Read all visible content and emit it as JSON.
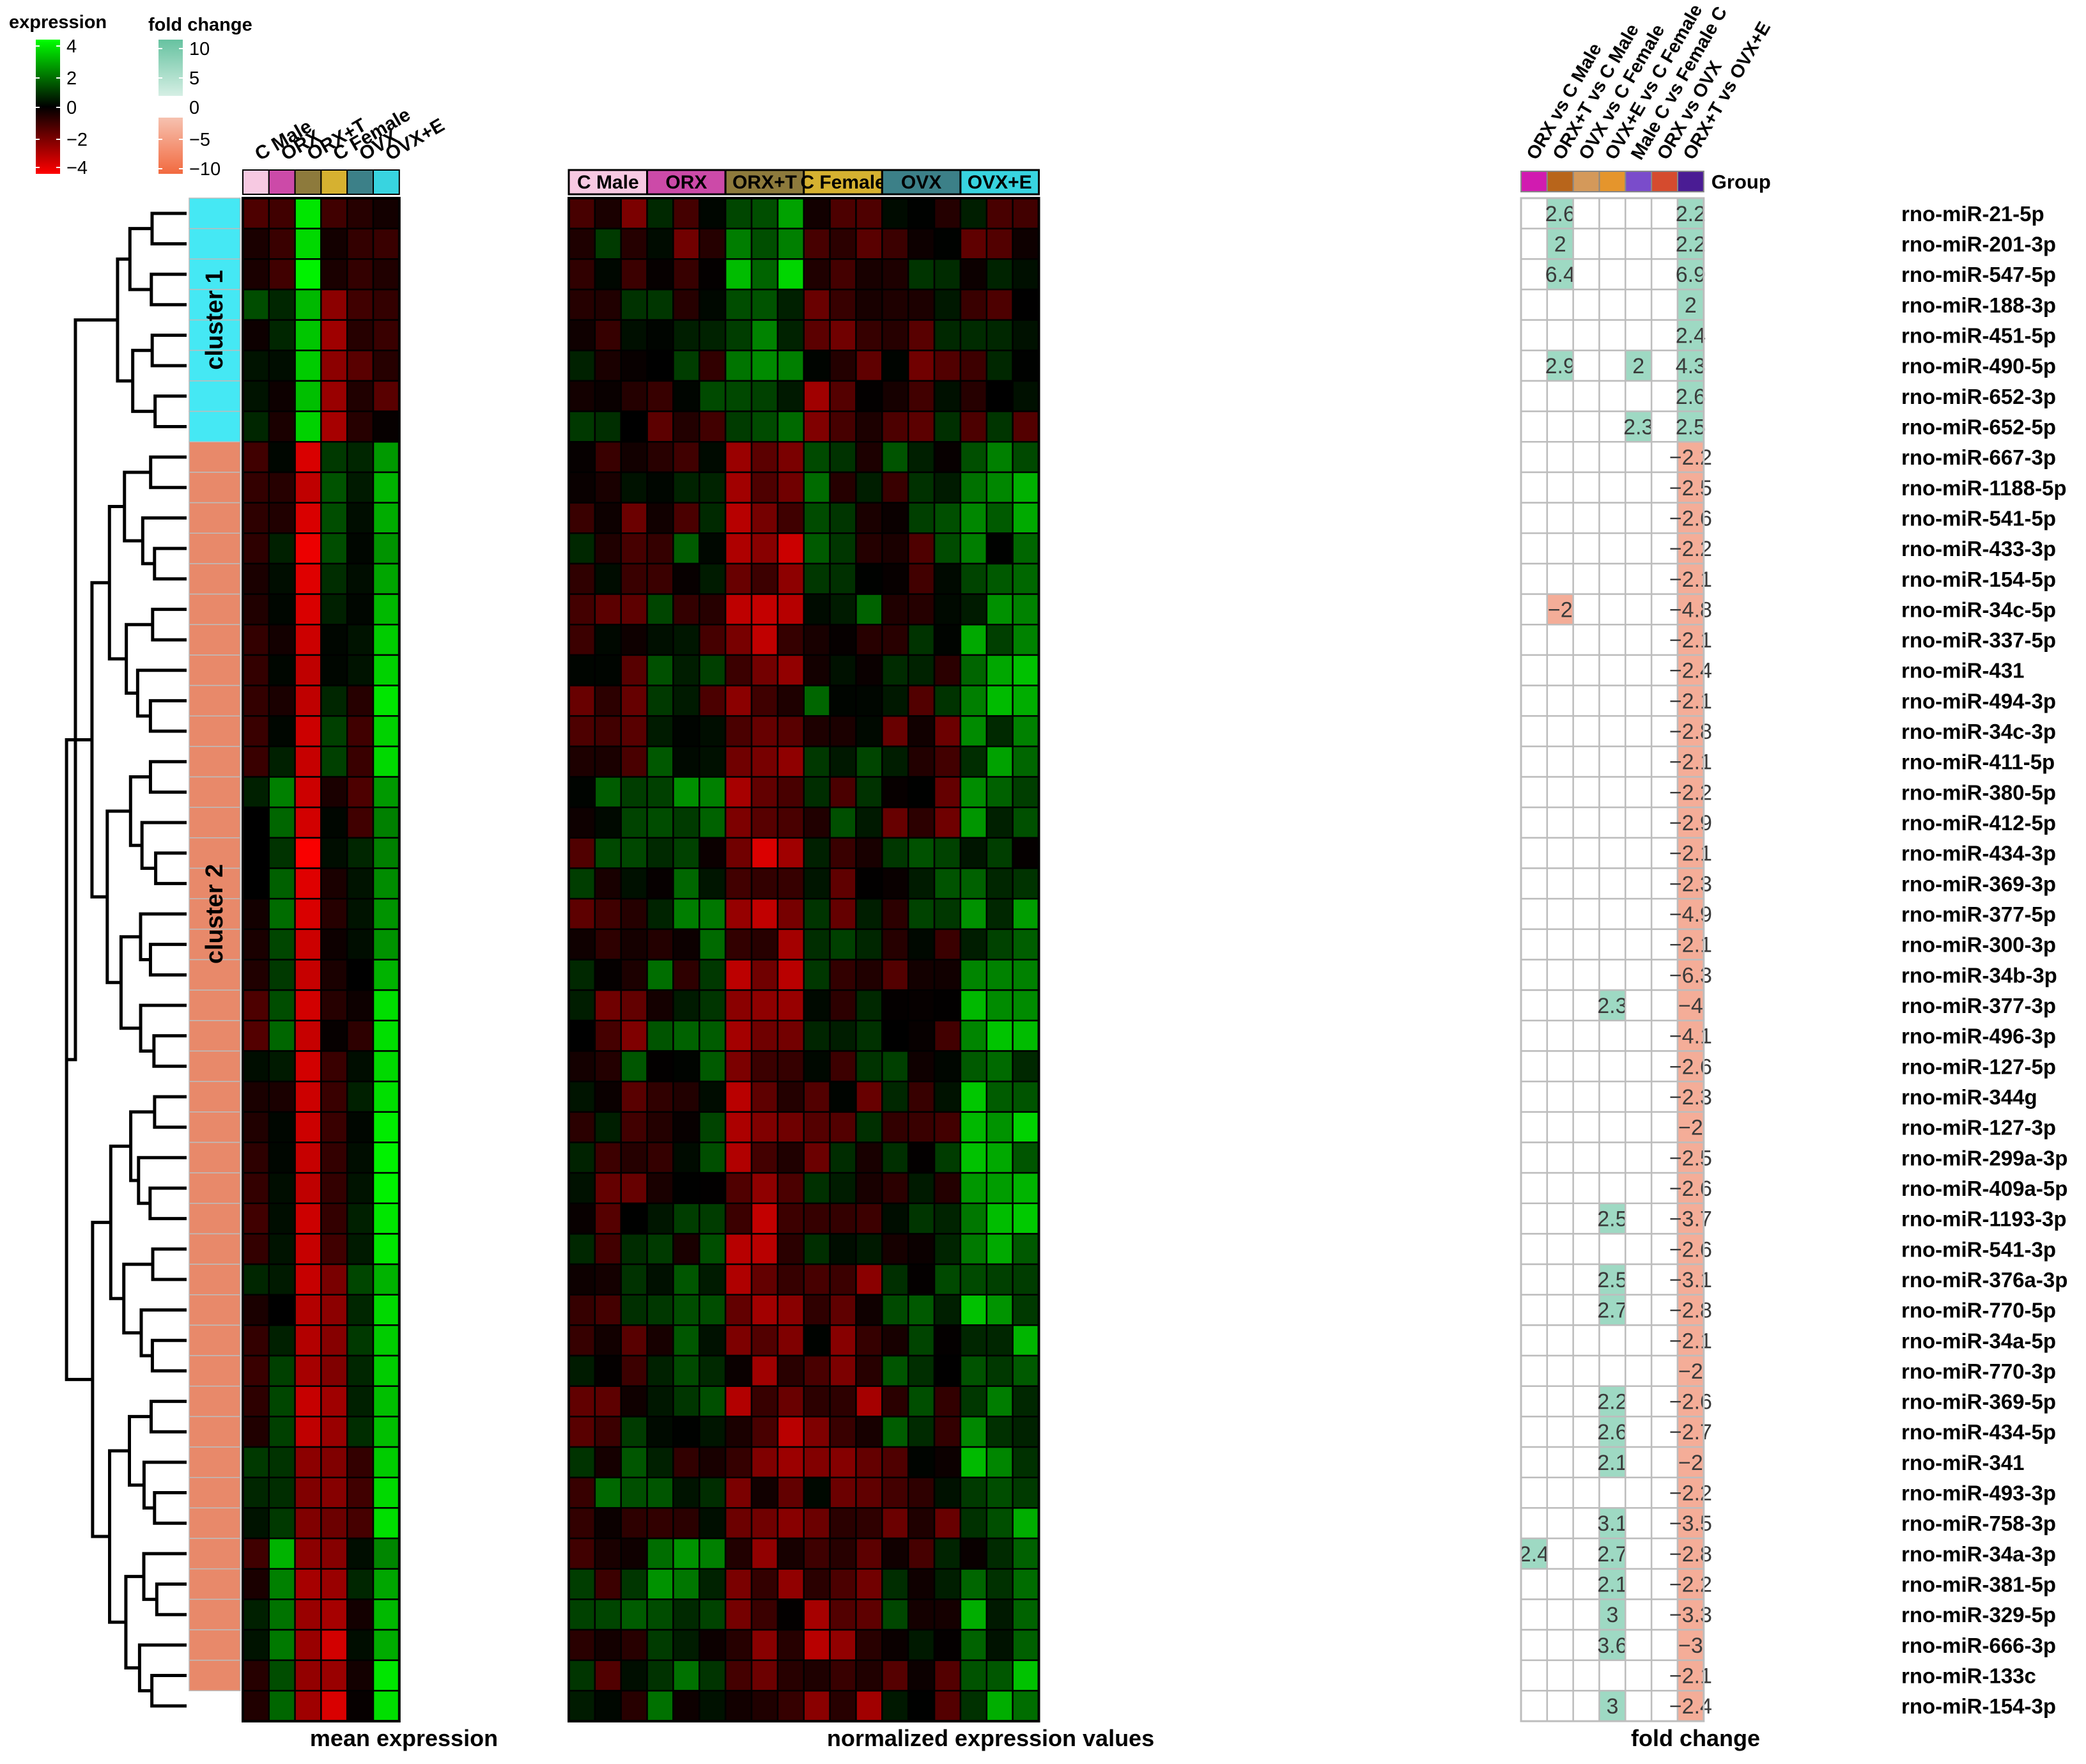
{
  "chart_data": {
    "type": "heatmap",
    "legends": {
      "expression": {
        "title": "expression",
        "ticks": [
          "4",
          "2",
          "0",
          "−2",
          "−4"
        ]
      },
      "fold_change": {
        "title": "fold change",
        "ticks": [
          "10",
          "5",
          "0",
          "−5",
          "−10"
        ]
      }
    },
    "panel_titles": {
      "mean": "mean expression",
      "normalized": "normalized expression values",
      "fold": "fold change"
    },
    "group_names": [
      "C Male",
      "ORX",
      "ORX+T",
      "C Female",
      "OVX",
      "OVX+E"
    ],
    "group_colors": [
      "#f7c9e2",
      "#cc4aa8",
      "#8d7a3c",
      "#d6b130",
      "#3c8088",
      "#38d4e0"
    ],
    "comparison_names": [
      "ORX vs C Male",
      "ORX+T vs C Male",
      "OVX vs C Female",
      "OVX+E vs C Female",
      "Male C vs Female C",
      "ORX vs OVX",
      "ORX+T vs OVX+E"
    ],
    "comparison_colors": [
      "#d11bb0",
      "#b8651b",
      "#d4995a",
      "#e5952c",
      "#7a4ccb",
      "#d54b2e",
      "#4a1c94"
    ],
    "group_column_label": "Group",
    "cluster_labels": [
      "cluster 1",
      "cluster 2"
    ],
    "cluster_colors": [
      "#45e8f4",
      "#e8896a"
    ],
    "cluster_sizes": [
      8,
      41
    ],
    "color_scale": {
      "expression_range": [
        -4,
        4
      ],
      "low": "#ff0000",
      "mid": "#000000",
      "high": "#00ff00",
      "fold_pos": "#9ed9c3",
      "fold_neg": "#f4ad98"
    },
    "rows": [
      {
        "name": "rno-miR-21-5p",
        "mean": [
          -1.2,
          -1.0,
          3.6,
          -1.0,
          -0.6,
          -0.3
        ],
        "fc": [
          "",
          "2.6",
          "",
          "",
          "",
          "",
          "2.2"
        ]
      },
      {
        "name": "rno-miR-201-3p",
        "mean": [
          -0.4,
          -0.9,
          3.4,
          -0.3,
          -0.8,
          -0.9
        ],
        "fc": [
          "",
          "2",
          "",
          "",
          "",
          "",
          "2.2"
        ]
      },
      {
        "name": "rno-miR-547-5p",
        "mean": [
          -0.4,
          -1.0,
          3.8,
          -0.4,
          -0.8,
          -0.5
        ],
        "fc": [
          "",
          "6.4",
          "",
          "",
          "",
          "",
          "6.9"
        ]
      },
      {
        "name": "rno-miR-188-3p",
        "mean": [
          1.2,
          0.6,
          2.9,
          -2.2,
          -1.0,
          -0.8
        ],
        "fc": [
          "",
          "",
          "",
          "",
          "",
          "",
          "2"
        ]
      },
      {
        "name": "rno-miR-451-5p",
        "mean": [
          -0.2,
          0.6,
          3.1,
          -2.5,
          -0.6,
          -0.9
        ],
        "fc": [
          "",
          "",
          "",
          "",
          "",
          "",
          "2.4"
        ]
      },
      {
        "name": "rno-miR-490-5p",
        "mean": [
          0.3,
          0.2,
          3.2,
          -2.2,
          -1.4,
          -0.6
        ],
        "fc": [
          "",
          "2.9",
          "",
          "",
          "2",
          "",
          "4.3"
        ]
      },
      {
        "name": "rno-miR-652-3p",
        "mean": [
          0.3,
          -0.2,
          3.0,
          -2.4,
          -0.5,
          -1.4
        ],
        "fc": [
          "",
          "",
          "",
          "",
          "",
          "",
          "2.6"
        ]
      },
      {
        "name": "rno-miR-652-5p",
        "mean": [
          0.6,
          -0.4,
          3.3,
          -2.6,
          -0.6,
          -0.1
        ],
        "fc": [
          "",
          "",
          "",
          "",
          "2.3",
          "",
          "2.5"
        ]
      },
      {
        "name": "rno-miR-667-3p",
        "mean": [
          -1.0,
          0.1,
          -3.4,
          0.9,
          0.6,
          2.4
        ],
        "fc": [
          "",
          "",
          "",
          "",
          "",
          "",
          "−2.2"
        ]
      },
      {
        "name": "rno-miR-1188-5p",
        "mean": [
          -0.8,
          -0.6,
          -3.0,
          1.3,
          0.4,
          2.8
        ],
        "fc": [
          "",
          "",
          "",
          "",
          "",
          "",
          "−2.5"
        ]
      },
      {
        "name": "rno-miR-541-5p",
        "mean": [
          -0.7,
          -0.5,
          -3.4,
          1.2,
          0.2,
          2.7
        ],
        "fc": [
          "",
          "",
          "",
          "",
          "",
          "",
          "−2.6"
        ]
      },
      {
        "name": "rno-miR-433-3p",
        "mean": [
          -0.7,
          0.5,
          -3.7,
          1.2,
          0.1,
          2.3
        ],
        "fc": [
          "",
          "",
          "",
          "",
          "",
          "",
          "−2.2"
        ]
      },
      {
        "name": "rno-miR-154-5p",
        "mean": [
          -0.4,
          0.2,
          -3.5,
          0.7,
          0.2,
          2.6
        ],
        "fc": [
          "",
          "",
          "",
          "",
          "",
          "",
          "−2.1"
        ]
      },
      {
        "name": "rno-miR-34c-5p",
        "mean": [
          -0.5,
          0.1,
          -3.4,
          0.5,
          0.1,
          2.9
        ],
        "fc": [
          "",
          "−2",
          "",
          "",
          "",
          "",
          "−4.8"
        ]
      },
      {
        "name": "rno-miR-337-5p",
        "mean": [
          -0.8,
          -0.3,
          -3.2,
          0.1,
          0.3,
          3.2
        ],
        "fc": [
          "",
          "",
          "",
          "",
          "",
          "",
          "−2.1"
        ]
      },
      {
        "name": "rno-miR-431",
        "mean": [
          -0.8,
          0.1,
          -3.0,
          0.1,
          0.3,
          3.3
        ],
        "fc": [
          "",
          "",
          "",
          "",
          "",
          "",
          "−2.4"
        ]
      },
      {
        "name": "rno-miR-494-3p",
        "mean": [
          -0.8,
          -0.4,
          -3.0,
          0.6,
          -0.6,
          3.6
        ],
        "fc": [
          "",
          "",
          "",
          "",
          "",
          "",
          "−2.1"
        ]
      },
      {
        "name": "rno-miR-34c-3p",
        "mean": [
          -0.9,
          0.1,
          -3.2,
          1.0,
          -1.0,
          3.3
        ],
        "fc": [
          "",
          "",
          "",
          "",
          "",
          "",
          "−2.8"
        ]
      },
      {
        "name": "rno-miR-411-5p",
        "mean": [
          -0.9,
          0.5,
          -3.1,
          1.0,
          -0.9,
          3.4
        ],
        "fc": [
          "",
          "",
          "",
          "",
          "",
          "",
          "−2.1"
        ]
      },
      {
        "name": "rno-miR-380-5p",
        "mean": [
          0.5,
          2.0,
          -3.2,
          -0.4,
          -1.2,
          2.4
        ],
        "fc": [
          "",
          "",
          "",
          "",
          "",
          "",
          "−2.2"
        ]
      },
      {
        "name": "rno-miR-412-5p",
        "mean": [
          0.0,
          1.6,
          -3.3,
          0.1,
          -1.0,
          2.0
        ],
        "fc": [
          "",
          "",
          "",
          "",
          "",
          "",
          "−2.9"
        ]
      },
      {
        "name": "rno-miR-434-3p",
        "mean": [
          0.0,
          0.8,
          -3.9,
          0.2,
          0.6,
          2.0
        ],
        "fc": [
          "",
          "",
          "",
          "",
          "",
          "",
          "−2.1"
        ]
      },
      {
        "name": "rno-miR-369-3p",
        "mean": [
          0.0,
          1.5,
          -3.5,
          -0.4,
          0.3,
          2.2
        ],
        "fc": [
          "",
          "",
          "",
          "",
          "",
          "",
          "−2.3"
        ]
      },
      {
        "name": "rno-miR-377-5p",
        "mean": [
          -0.3,
          1.7,
          -3.4,
          -0.6,
          0.3,
          2.3
        ],
        "fc": [
          "",
          "",
          "",
          "",
          "",
          "",
          "−4.9"
        ]
      },
      {
        "name": "rno-miR-300-3p",
        "mean": [
          -0.4,
          1.1,
          -3.2,
          -0.2,
          0.2,
          2.3
        ],
        "fc": [
          "",
          "",
          "",
          "",
          "",
          "",
          "−2.1"
        ]
      },
      {
        "name": "rno-miR-34b-3p",
        "mean": [
          -0.5,
          0.9,
          -3.1,
          -0.4,
          0.0,
          2.8
        ],
        "fc": [
          "",
          "",
          "",
          "",
          "",
          "",
          "−6.3"
        ]
      },
      {
        "name": "rno-miR-377-3p",
        "mean": [
          -1.2,
          1.2,
          -3.3,
          -0.6,
          -0.2,
          3.5
        ],
        "fc": [
          "",
          "",
          "",
          "2.3",
          "",
          "",
          "−4"
        ]
      },
      {
        "name": "rno-miR-496-3p",
        "mean": [
          -1.3,
          1.6,
          -3.1,
          -0.1,
          -0.7,
          3.5
        ],
        "fc": [
          "",
          "",
          "",
          "",
          "",
          "",
          "−4.1"
        ]
      },
      {
        "name": "rno-miR-127-5p",
        "mean": [
          0.2,
          0.4,
          -3.3,
          -0.9,
          0.2,
          3.4
        ],
        "fc": [
          "",
          "",
          "",
          "",
          "",
          "",
          "−2.6"
        ]
      },
      {
        "name": "rno-miR-344g",
        "mean": [
          -0.4,
          -0.4,
          -3.2,
          -0.9,
          0.5,
          3.5
        ],
        "fc": [
          "",
          "",
          "",
          "",
          "",
          "",
          "−2.3"
        ]
      },
      {
        "name": "rno-miR-127-3p",
        "mean": [
          -0.5,
          0.1,
          -3.2,
          -0.9,
          0.1,
          3.7
        ],
        "fc": [
          "",
          "",
          "",
          "",
          "",
          "",
          "−2"
        ]
      },
      {
        "name": "rno-miR-299a-3p",
        "mean": [
          -0.7,
          0.1,
          -3.1,
          -0.8,
          0.2,
          3.8
        ],
        "fc": [
          "",
          "",
          "",
          "",
          "",
          "",
          "−2.5"
        ]
      },
      {
        "name": "rno-miR-409a-5p",
        "mean": [
          -0.8,
          0.2,
          -3.0,
          -0.8,
          0.3,
          3.8
        ],
        "fc": [
          "",
          "",
          "",
          "",
          "",
          "",
          "−2.6"
        ]
      },
      {
        "name": "rno-miR-1193-3p",
        "mean": [
          -1.0,
          0.2,
          -3.2,
          -0.8,
          0.5,
          3.6
        ],
        "fc": [
          "",
          "",
          "",
          "2.5",
          "",
          "",
          "−3.7"
        ]
      },
      {
        "name": "rno-miR-541-3p",
        "mean": [
          -0.8,
          0.3,
          -3.1,
          -1.0,
          0.4,
          3.6
        ],
        "fc": [
          "",
          "",
          "",
          "",
          "",
          "",
          "−2.6"
        ]
      },
      {
        "name": "rno-miR-376a-3p",
        "mean": [
          0.6,
          0.4,
          -3.1,
          -1.9,
          1.1,
          2.8
        ],
        "fc": [
          "",
          "",
          "",
          "2.5",
          "",
          "",
          "−3.1"
        ]
      },
      {
        "name": "rno-miR-770-5p",
        "mean": [
          -0.4,
          0.0,
          -2.8,
          -2.2,
          0.6,
          3.4
        ],
        "fc": [
          "",
          "",
          "",
          "2.7",
          "",
          "",
          "−2.8"
        ]
      },
      {
        "name": "rno-miR-34a-5p",
        "mean": [
          -0.8,
          0.5,
          -2.8,
          -2.1,
          0.9,
          3.2
        ],
        "fc": [
          "",
          "",
          "",
          "",
          "",
          "",
          "−2.1"
        ]
      },
      {
        "name": "rno-miR-770-3p",
        "mean": [
          -0.9,
          1.0,
          -2.6,
          -2.0,
          0.6,
          3.2
        ],
        "fc": [
          "",
          "",
          "",
          "",
          "",
          "",
          "−2"
        ]
      },
      {
        "name": "rno-miR-369-5p",
        "mean": [
          -0.7,
          1.1,
          -3.1,
          -2.5,
          0.5,
          3.0
        ],
        "fc": [
          "",
          "",
          "",
          "2.2",
          "",
          "",
          "−2.6"
        ]
      },
      {
        "name": "rno-miR-434-5p",
        "mean": [
          -0.5,
          1.0,
          -3.0,
          -2.4,
          0.7,
          3.0
        ],
        "fc": [
          "",
          "",
          "",
          "2.6",
          "",
          "",
          "−2.7"
        ]
      },
      {
        "name": "rno-miR-341",
        "mean": [
          0.9,
          0.8,
          -2.2,
          -2.0,
          -0.8,
          3.2
        ],
        "fc": [
          "",
          "",
          "",
          "2.1",
          "",
          "",
          "−2"
        ]
      },
      {
        "name": "rno-miR-493-3p",
        "mean": [
          0.6,
          0.7,
          -2.0,
          -2.1,
          -1.0,
          3.4
        ],
        "fc": [
          "",
          "",
          "",
          "",
          "",
          "",
          "−2.2"
        ]
      },
      {
        "name": "rno-miR-758-3p",
        "mean": [
          0.3,
          0.9,
          -2.0,
          -1.7,
          -1.1,
          3.5
        ],
        "fc": [
          "",
          "",
          "",
          "3.1",
          "",
          "",
          "−3.5"
        ]
      },
      {
        "name": "rno-miR-34a-3p",
        "mean": [
          -1.0,
          2.8,
          -2.2,
          -2.1,
          0.2,
          2.1
        ],
        "fc": [
          "2.4",
          "",
          "",
          "2.7",
          "",
          "",
          "−2.8"
        ]
      },
      {
        "name": "rno-miR-381-5p",
        "mean": [
          -0.4,
          2.0,
          -2.6,
          -2.4,
          0.6,
          2.6
        ],
        "fc": [
          "",
          "",
          "",
          "2.1",
          "",
          "",
          "−2.2"
        ]
      },
      {
        "name": "rno-miR-329-5p",
        "mean": [
          0.5,
          1.8,
          -2.4,
          -2.6,
          -0.3,
          2.9
        ],
        "fc": [
          "",
          "",
          "",
          "3",
          "",
          "",
          "−3.3"
        ]
      },
      {
        "name": "rno-miR-666-3p",
        "mean": [
          0.3,
          1.9,
          -2.4,
          -3.3,
          0.2,
          2.7
        ],
        "fc": [
          "",
          "",
          "",
          "3.6",
          "",
          "",
          "−3"
        ]
      },
      {
        "name": "rno-miR-133c",
        "mean": [
          -0.6,
          1.2,
          -2.3,
          -2.4,
          -0.3,
          3.6
        ],
        "fc": [
          "",
          "",
          "",
          "",
          "",
          "",
          "−2.1"
        ]
      },
      {
        "name": "rno-miR-154-3p",
        "mean": [
          -0.5,
          1.6,
          -2.5,
          -3.4,
          -0.1,
          3.5
        ],
        "fc": [
          "",
          "",
          "",
          "3",
          "",
          "",
          "−2.4"
        ]
      }
    ]
  }
}
